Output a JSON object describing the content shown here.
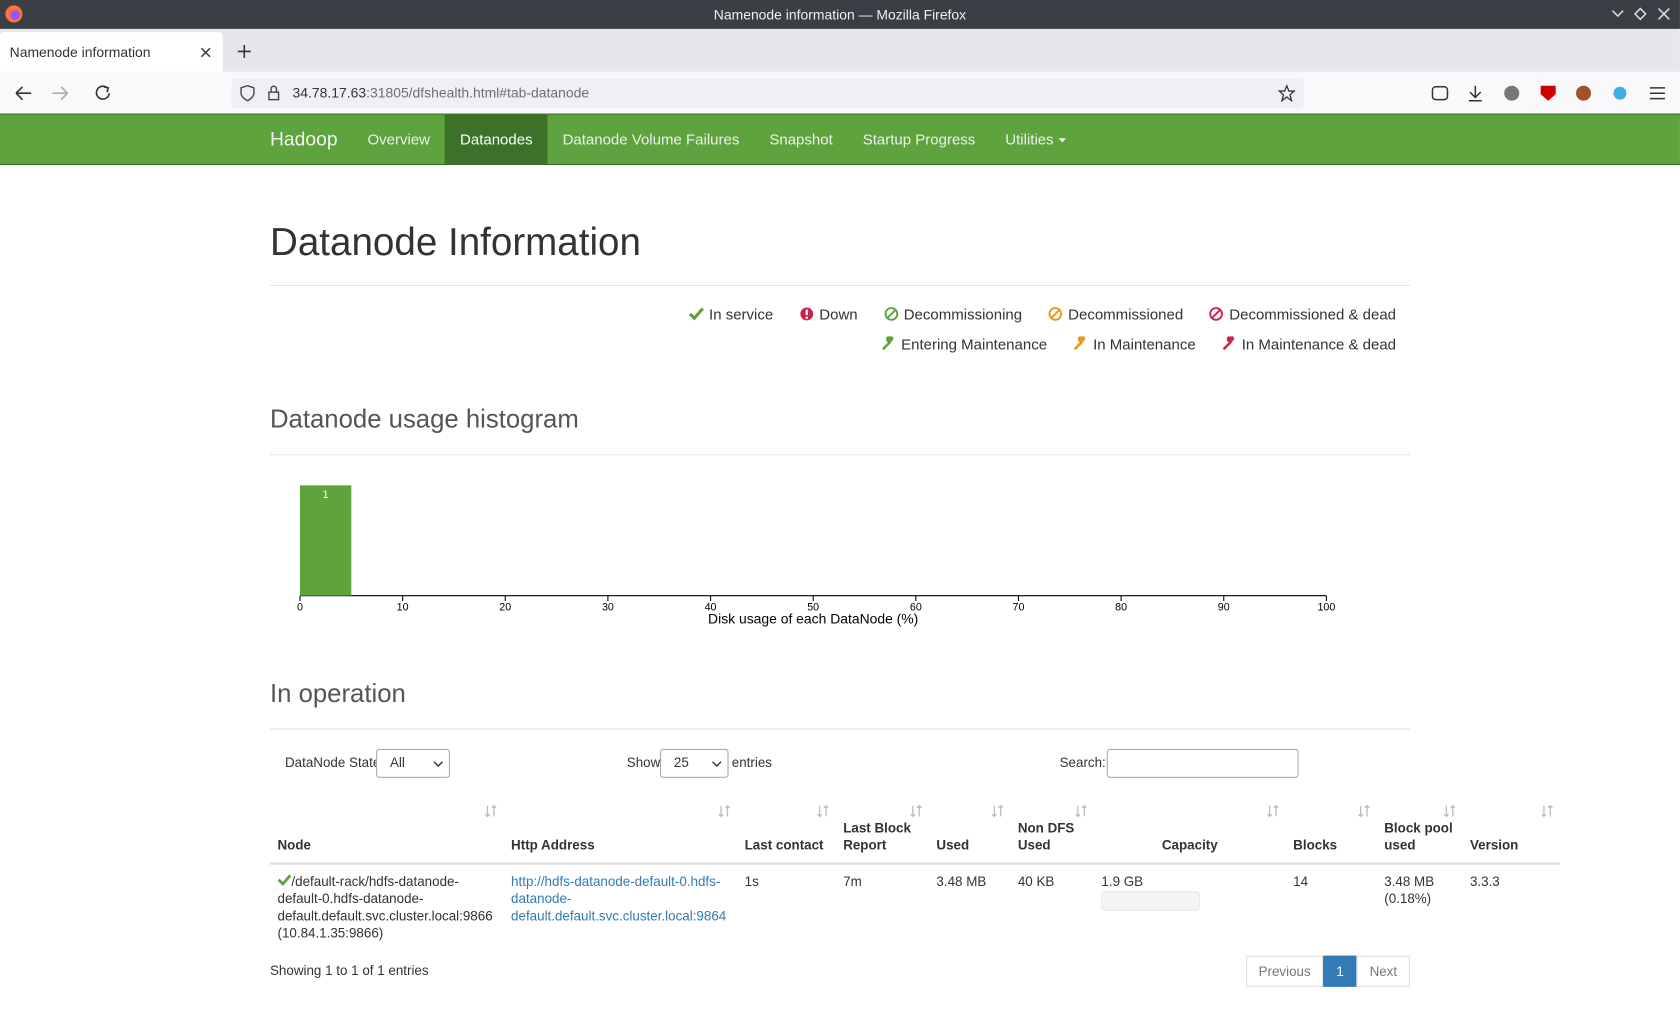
{
  "window": {
    "title": "Namenode information — Mozilla Firefox",
    "tab": "Namenode information",
    "url_host": "34.78.17.63",
    "url_rest": ":31805/dfshealth.html#tab-datanode"
  },
  "nav": {
    "brand": "Hadoop",
    "items": [
      "Overview",
      "Datanodes",
      "Datanode Volume Failures",
      "Snapshot",
      "Startup Progress",
      "Utilities"
    ],
    "active": 1
  },
  "page": {
    "title": "Datanode Information"
  },
  "legend": [
    [
      {
        "label": "In service",
        "icon": "check",
        "color": "#5fa33e"
      },
      {
        "label": "Down",
        "icon": "down",
        "color": "#c7254e"
      },
      {
        "label": "Decommissioning",
        "icon": "ban",
        "color": "#5fa33e"
      },
      {
        "label": "Decommissioned",
        "icon": "ban",
        "color": "#ec971f"
      },
      {
        "label": "Decommissioned & dead",
        "icon": "ban",
        "color": "#c7254e"
      }
    ],
    [
      {
        "label": "Entering Maintenance",
        "icon": "wrench",
        "color": "#5fa33e"
      },
      {
        "label": "In Maintenance",
        "icon": "wrench",
        "color": "#ec971f"
      },
      {
        "label": "In Maintenance & dead",
        "icon": "wrench",
        "color": "#c7254e"
      }
    ]
  ],
  "histogram": {
    "title": "Datanode usage histogram",
    "chart_data": {
      "type": "histogram",
      "bins": [
        0,
        5
      ],
      "values": [
        1
      ],
      "color": "#5fa33e",
      "xlim": [
        0,
        100
      ],
      "xticks": [
        0,
        10,
        20,
        30,
        40,
        50,
        60,
        70,
        80,
        90,
        100
      ],
      "xlabel": "Disk usage of each DataNode (%)"
    }
  },
  "operation": {
    "title": "In operation",
    "state_label": "DataNode State",
    "state_value": "All",
    "show": "Show",
    "page_size": "25",
    "entries": "entries",
    "search": "Search:",
    "columns": [
      "Node",
      "Http Address",
      "Last contact",
      "Last Block Report",
      "Used",
      "Non DFS Used",
      "Capacity",
      "Blocks",
      "Block pool used",
      "Version"
    ],
    "rows": [
      {
        "node": "/default-rack/hdfs-datanode-default-0.hdfs-datanode-default.default.svc.cluster.local:9866",
        "node_ip": "(10.84.1.35:9866)",
        "http": "http://hdfs-datanode-default-0.hdfs-datanode-default.default.svc.cluster.local:9864",
        "last_contact": "1s",
        "last_block_report": "7m",
        "used": "3.48 MB",
        "non_dfs_used": "40 KB",
        "capacity": "1.9 GB",
        "blocks": 14,
        "block_pool_used": "3.48 MB",
        "block_pool_pct": "(0.18%)",
        "version": "3.3.3"
      }
    ],
    "info": "Showing 1 to 1 of 1 entries",
    "pager": [
      "Previous",
      "1",
      "Next"
    ],
    "pager_active": 1
  }
}
